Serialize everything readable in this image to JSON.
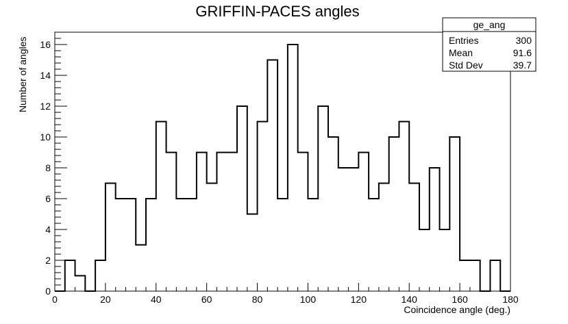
{
  "chart_data": {
    "type": "bar",
    "style": "step-histogram",
    "title": "GRIFFIN-PACES angles",
    "xlabel": "Coincidence angle (deg.)",
    "ylabel": "Number of angles",
    "xlim": [
      0,
      180
    ],
    "ylim": [
      0,
      16.8
    ],
    "bin_width": 4,
    "bin_edges_start": 0,
    "values": [
      0,
      2,
      1,
      0,
      2,
      7,
      6,
      6,
      3,
      6,
      11,
      9,
      6,
      6,
      9,
      7,
      9,
      9,
      12,
      5,
      11,
      15,
      6,
      16,
      9,
      6,
      12,
      10,
      8,
      8,
      9,
      6,
      7,
      10,
      11,
      7,
      4,
      8,
      4,
      10,
      2,
      2,
      0,
      2,
      0
    ],
    "x_ticks": [
      0,
      20,
      40,
      60,
      80,
      100,
      120,
      140,
      160,
      180
    ],
    "x_tick_labels": [
      "0",
      "20",
      "40",
      "60",
      "80",
      "100",
      "120",
      "140",
      "160",
      "180"
    ],
    "y_ticks": [
      0,
      2,
      4,
      6,
      8,
      10,
      12,
      14,
      16
    ],
    "y_tick_labels": [
      "0",
      "2",
      "4",
      "6",
      "8",
      "10",
      "12",
      "14",
      "16"
    ],
    "grid": false,
    "legend": "none",
    "line_color": "#000000"
  },
  "stats_box": {
    "name": "ge_ang",
    "rows": [
      {
        "label": "Entries",
        "value": "300"
      },
      {
        "label": "Mean",
        "value": "91.6"
      },
      {
        "label": "Std Dev",
        "value": "39.7"
      }
    ]
  }
}
